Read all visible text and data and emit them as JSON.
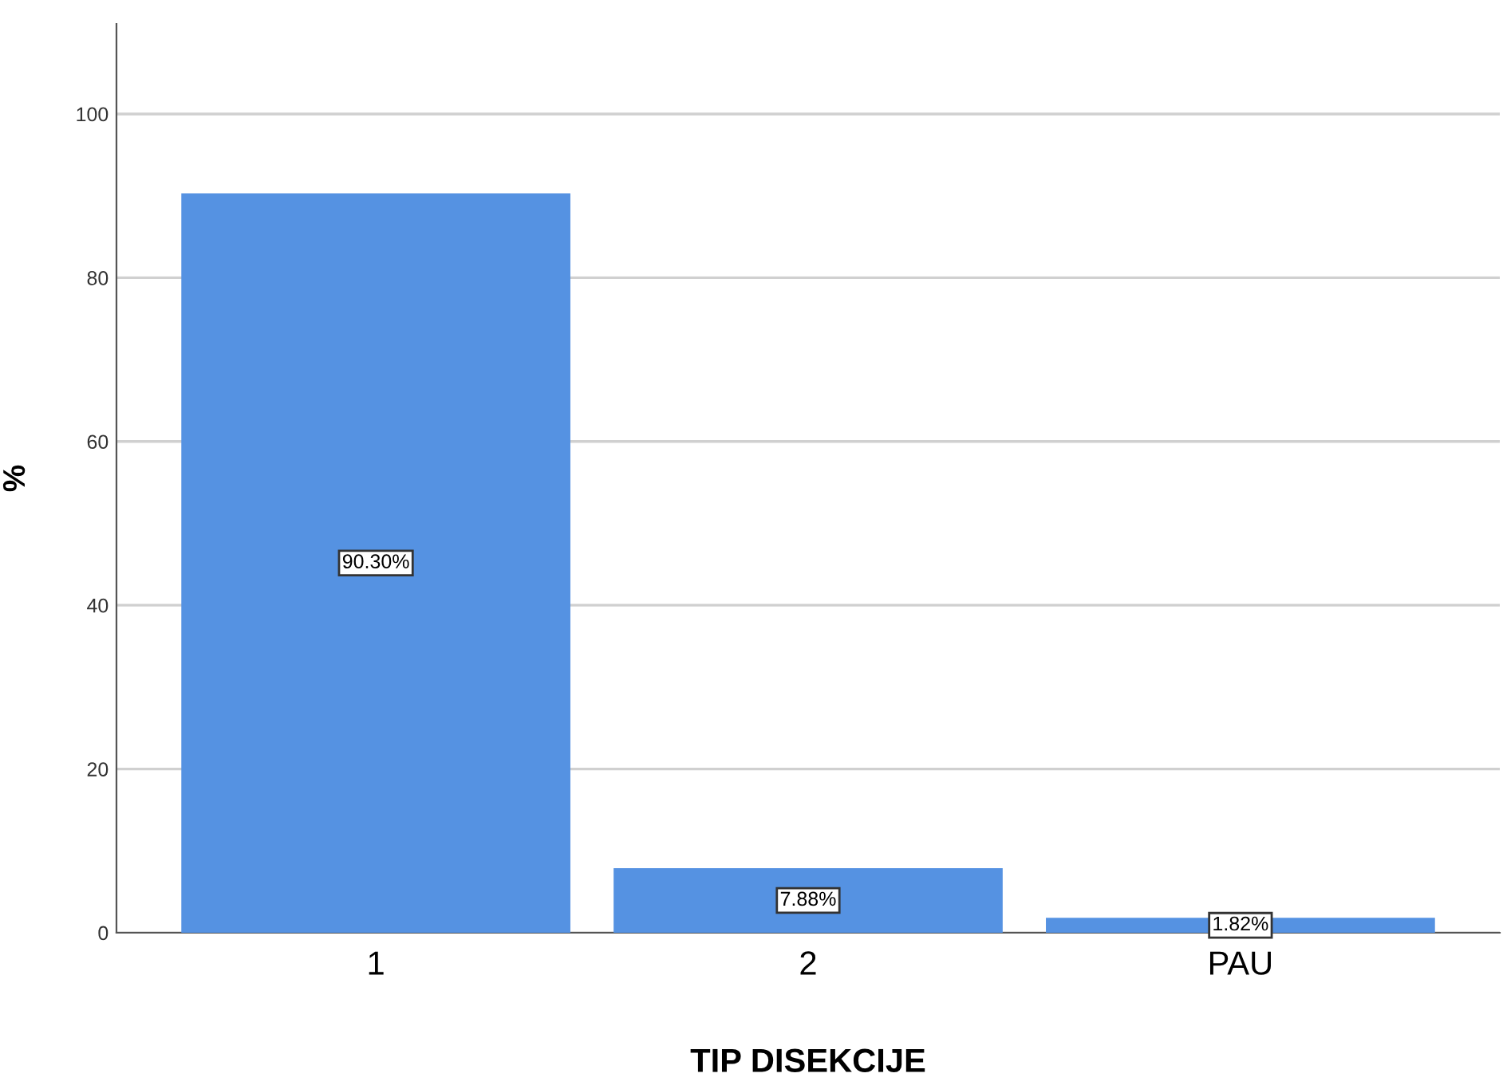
{
  "chart_data": {
    "type": "bar",
    "xlabel": "TIP DISEKCIJE",
    "ylabel": "%",
    "categories": [
      "1",
      "2",
      "PAU"
    ],
    "values": [
      90.3,
      7.88,
      1.82
    ],
    "value_labels": [
      "90.30%",
      "7.88%",
      "1.82%"
    ],
    "color": "#5592e2",
    "ylim": [
      0,
      111
    ],
    "yticks": [
      0,
      20,
      40,
      60,
      80,
      100
    ],
    "grid": "y"
  }
}
